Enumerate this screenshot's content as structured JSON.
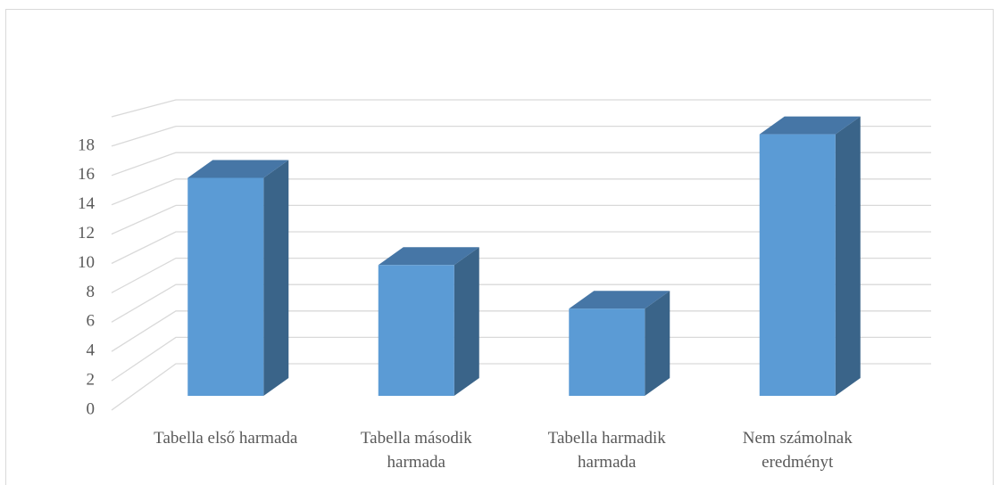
{
  "chart_data": {
    "type": "bar3d",
    "categories": [
      "Tabella első harmada",
      "Tabella második harmada",
      "Tabella harmadik harmada",
      "Nem számolnak eredményt"
    ],
    "values": [
      15,
      9,
      6,
      18
    ],
    "color": "#5b9bd5",
    "side_color": "#3a6489",
    "top_color": "#4676a6",
    "ylim": [
      0,
      20
    ],
    "yticks": [
      0,
      2,
      4,
      6,
      8,
      10,
      12,
      14,
      16,
      18
    ],
    "grid": true
  }
}
